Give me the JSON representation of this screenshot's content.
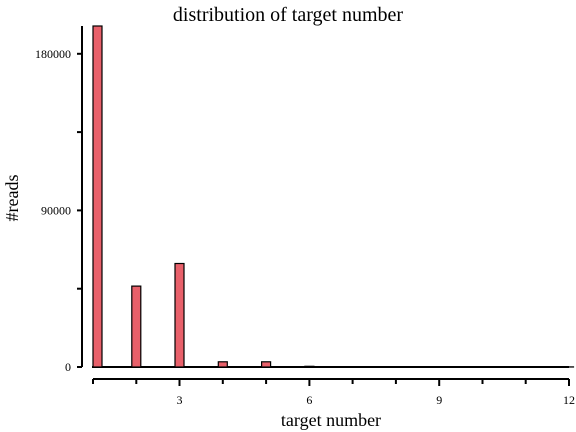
{
  "chart_data": {
    "type": "bar",
    "title": "distribution of target number",
    "xlabel": "target number",
    "ylabel": "#reads",
    "x": [
      1,
      2,
      3,
      4,
      5,
      6,
      7,
      8,
      9,
      10,
      11,
      12
    ],
    "values": [
      196000,
      46500,
      59500,
      3000,
      3000,
      400,
      150,
      100,
      80,
      60,
      40,
      30
    ],
    "xlim": [
      1,
      12
    ],
    "ylim": [
      0,
      196000
    ],
    "xticks": [
      3,
      6,
      9,
      12
    ],
    "yticks": [
      0,
      90000,
      180000
    ],
    "bar_color": "#e8606a",
    "grid": false,
    "legend": "none"
  }
}
